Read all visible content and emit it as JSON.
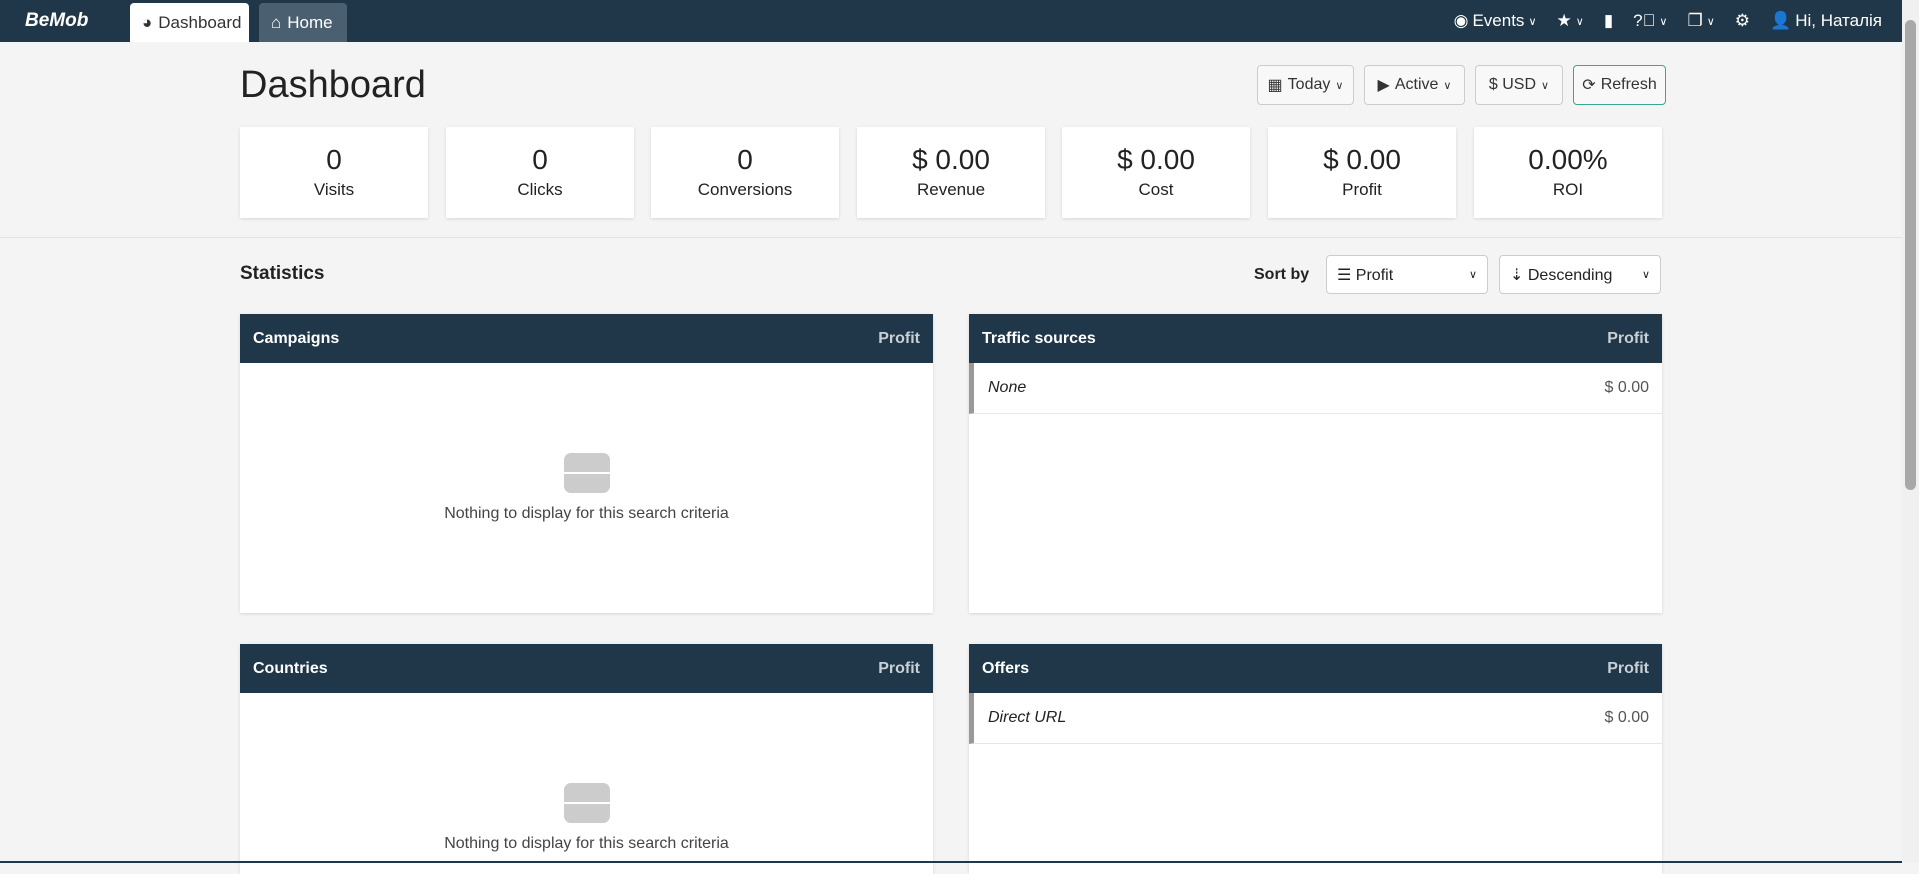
{
  "topbar": {
    "logo": "BeMob",
    "tabs": [
      {
        "label": "Dashboard",
        "icon": "dashboard-icon"
      },
      {
        "label": "Home",
        "icon": "home-icon"
      }
    ],
    "events": "Events",
    "user": "Hi, Наталія"
  },
  "header": {
    "title": "Dashboard",
    "date_filter": "Today",
    "status_filter": "Active",
    "currency": "$ USD",
    "refresh": "Refresh"
  },
  "stats": [
    {
      "value": "0",
      "label": "Visits"
    },
    {
      "value": "0",
      "label": "Clicks"
    },
    {
      "value": "0",
      "label": "Conversions"
    },
    {
      "value": "$ 0.00",
      "label": "Revenue"
    },
    {
      "value": "$ 0.00",
      "label": "Cost"
    },
    {
      "value": "$ 0.00",
      "label": "Profit"
    },
    {
      "value": "0.00%",
      "label": "ROI"
    }
  ],
  "statistics": {
    "title": "Statistics",
    "sort_by_label": "Sort by",
    "sort_field": "Profit",
    "sort_order": "Descending"
  },
  "panels": {
    "campaigns": {
      "title": "Campaigns",
      "metric": "Profit",
      "empty": "Nothing to display for this search criteria"
    },
    "traffic": {
      "title": "Traffic sources",
      "metric": "Profit",
      "rows": [
        {
          "name": "None",
          "value": "$ 0.00"
        }
      ]
    },
    "countries": {
      "title": "Countries",
      "metric": "Profit",
      "empty": "Nothing to display for this search criteria"
    },
    "offers": {
      "title": "Offers",
      "metric": "Profit",
      "rows": [
        {
          "name": "Direct URL",
          "value": "$ 0.00"
        }
      ]
    }
  }
}
